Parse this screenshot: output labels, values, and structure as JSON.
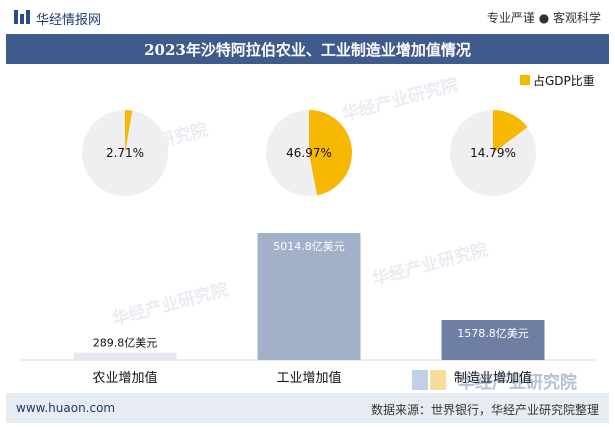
{
  "header": {
    "brand": "华经情报网",
    "slogan": "专业严谨 ● 客观科学"
  },
  "title": "2023年沙特阿拉伯农业、工业制造业增加值情况",
  "legend": {
    "label": "占GDP比重",
    "color": "#f6b800"
  },
  "watermarks": [
    "华经产业研究院",
    "华经产业研究院",
    "华经产业研究院",
    "华经产业研究院"
  ],
  "watermark_logo": "华经产业研究院",
  "footer": {
    "website": "www.huaon.com",
    "source": "数据来源：世界银行，华经产业研究院整理"
  },
  "colors": {
    "pie_highlight": "#f6b800",
    "pie_rest": "#efeff1",
    "bar_colors": [
      "#e6e8f0",
      "#a2b0ca",
      "#6f7ea3"
    ],
    "title_bg": "#3f5a8c"
  },
  "chart_data": {
    "type": "bar",
    "title": "2023年沙特阿拉伯农业、工业制造业增加值情况",
    "categories": [
      "农业增加值",
      "工业增加值",
      "制造业增加值"
    ],
    "series": [
      {
        "values": [
          289.8,
          5014.8,
          1578.8
        ],
        "value_labels": [
          "289.8亿美元",
          "5014.8亿美元",
          "1578.8亿美元"
        ]
      }
    ],
    "pies": [
      {
        "category": "农业增加值",
        "share_pct": 2.71,
        "label": "2.71%"
      },
      {
        "category": "工业增加值",
        "share_pct": 46.97,
        "label": "46.97%"
      },
      {
        "category": "制造业增加值",
        "share_pct": 14.79,
        "label": "14.79%"
      }
    ],
    "legend": [
      "占GDP比重"
    ],
    "legend_position": "top-right",
    "xlabel": "",
    "ylabel": "",
    "ylim": [
      0,
      5014.8
    ],
    "grid": false
  }
}
